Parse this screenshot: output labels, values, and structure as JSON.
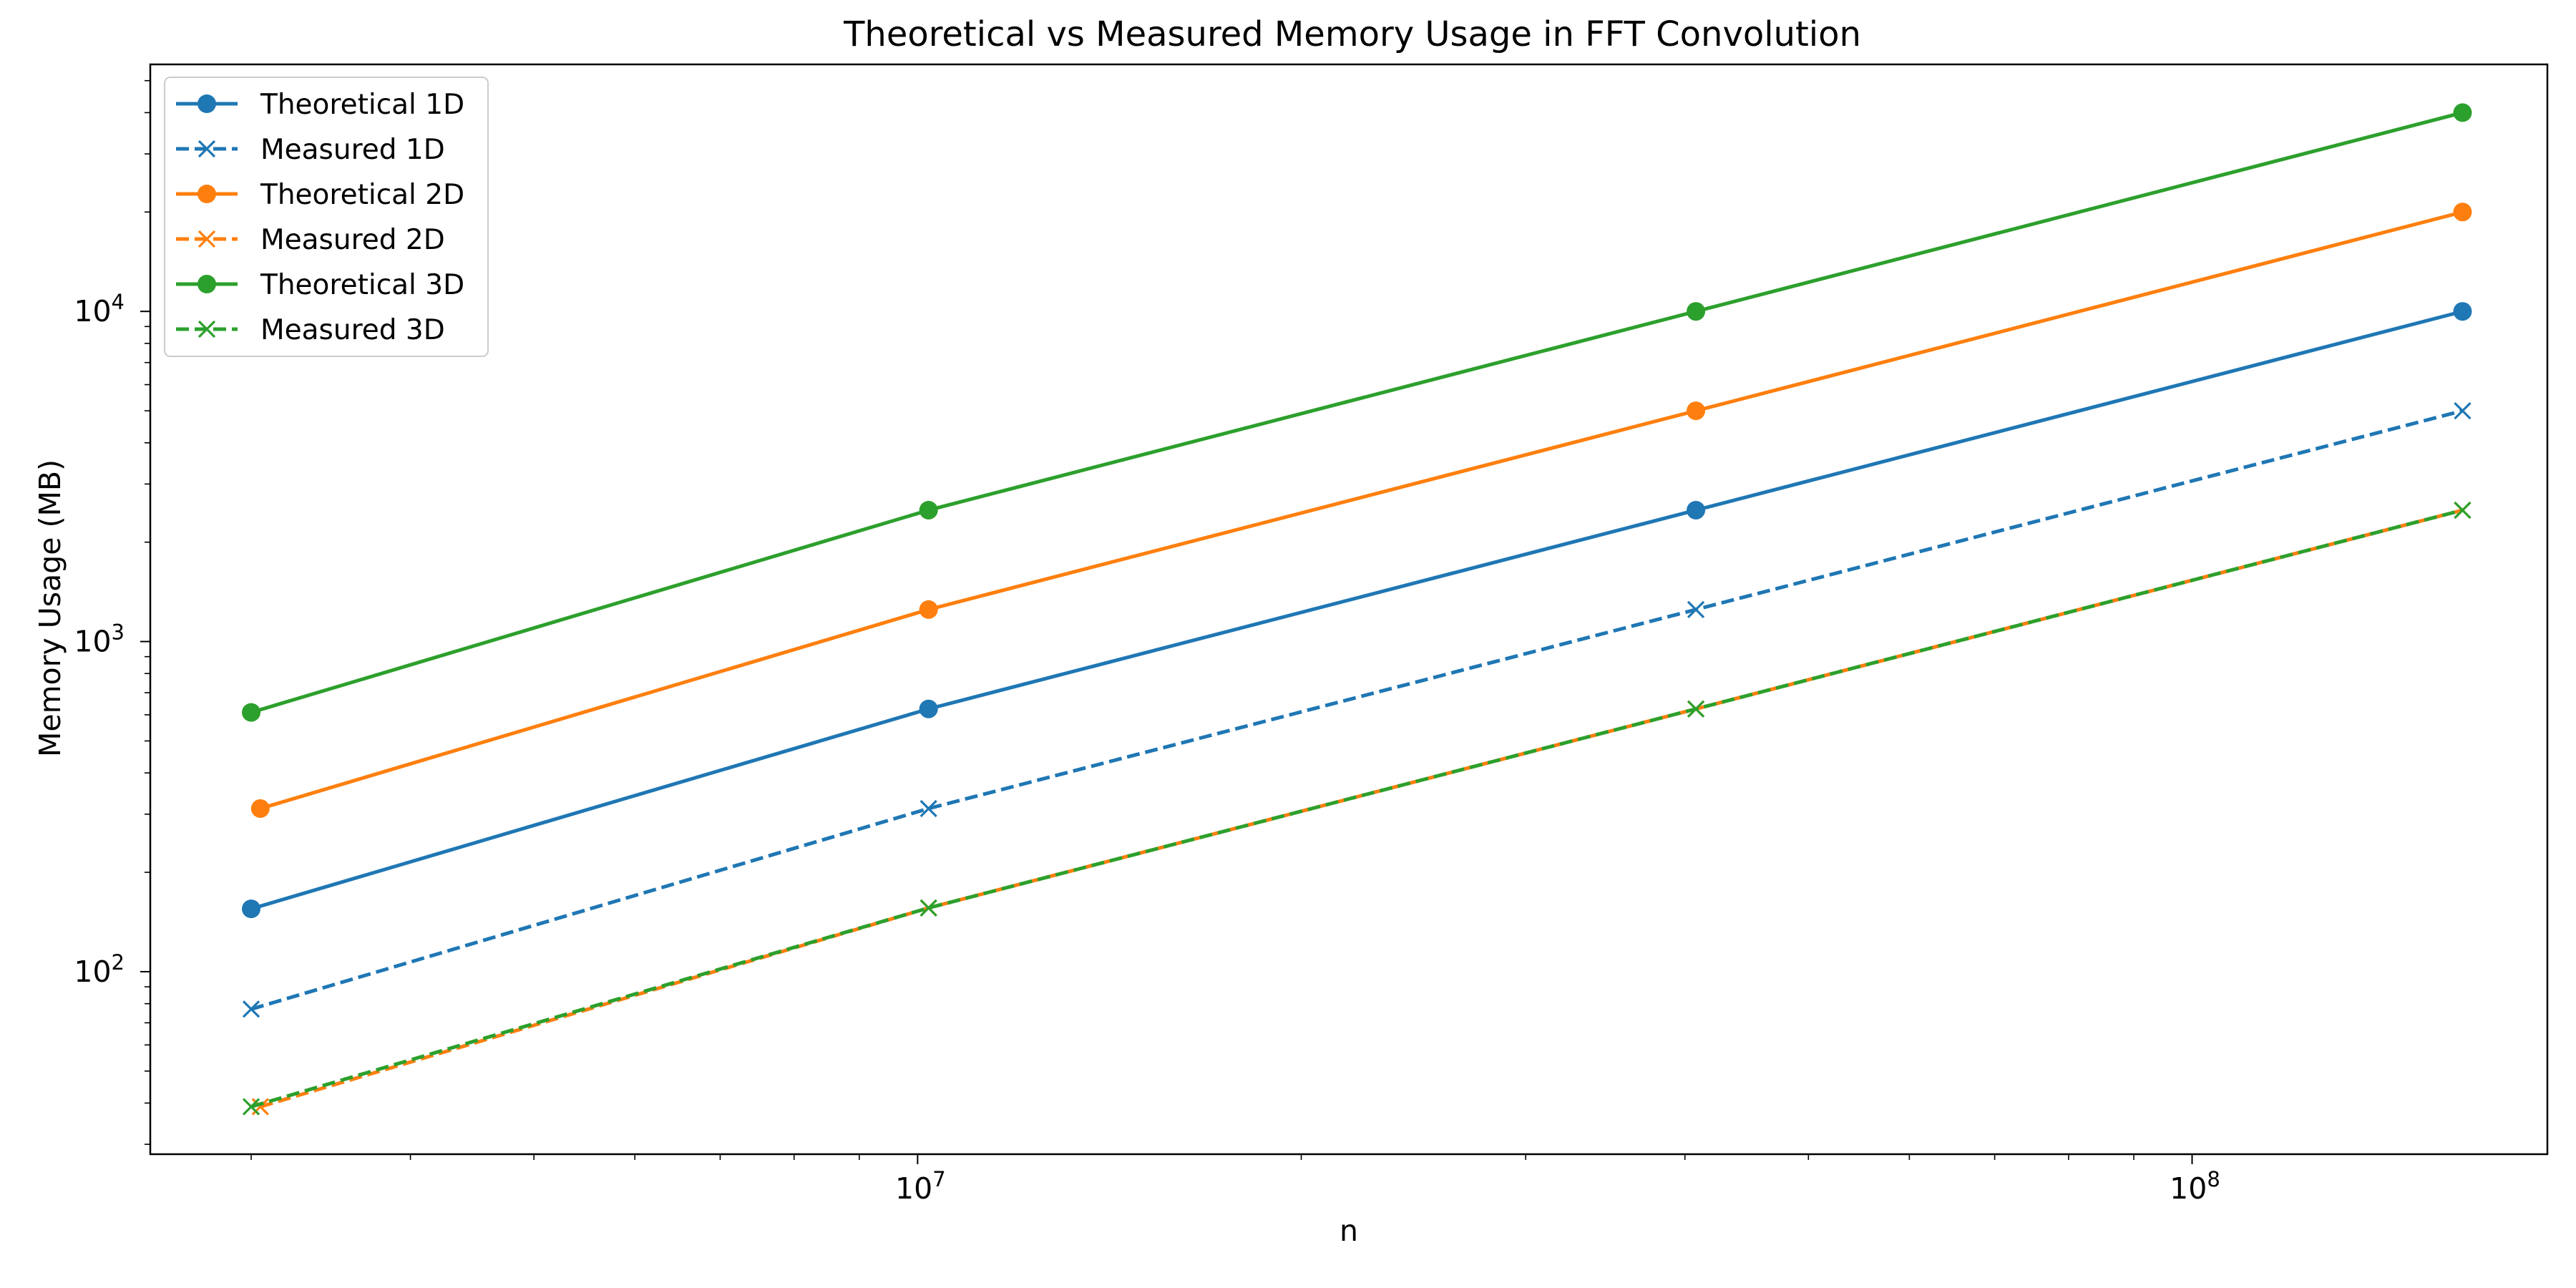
{
  "chart_data": {
    "type": "line",
    "title": "Theoretical vs Measured Memory Usage in FFT Convolution",
    "xlabel": "n",
    "ylabel": "Memory Usage (MB)",
    "xscale": "log",
    "yscale": "log",
    "xlim": [
      2500000,
      190000000
    ],
    "ylim": [
      28,
      56000
    ],
    "grid": false,
    "legend_position": "top-left",
    "x_ticks": [
      {
        "value": 10000000,
        "base": "10",
        "exp": "7"
      },
      {
        "value": 100000000,
        "base": "10",
        "exp": "8"
      }
    ],
    "y_ticks": [
      {
        "value": 100,
        "base": "10",
        "exp": "2"
      },
      {
        "value": 1000,
        "base": "10",
        "exp": "3"
      },
      {
        "value": 10000,
        "base": "10",
        "exp": "4"
      }
    ],
    "series": [
      {
        "name": "Theoretical 1D",
        "color": "#1f77b4",
        "dash": "solid",
        "marker": "circle",
        "points": [
          [
            3000000,
            155
          ],
          [
            10200000,
            625
          ],
          [
            40800000,
            2500
          ],
          [
            163000000,
            10000
          ]
        ]
      },
      {
        "name": "Measured 1D",
        "color": "#1f77b4",
        "dash": "dashed",
        "marker": "x",
        "points": [
          [
            3000000,
            77
          ],
          [
            10200000,
            312
          ],
          [
            40800000,
            1250
          ],
          [
            163000000,
            5000
          ]
        ]
      },
      {
        "name": "Theoretical 2D",
        "color": "#ff7f0e",
        "dash": "solid",
        "marker": "circle",
        "points": [
          [
            3050000,
            312
          ],
          [
            10200000,
            1250
          ],
          [
            40800000,
            5000
          ],
          [
            163000000,
            20000
          ]
        ]
      },
      {
        "name": "Measured 2D",
        "color": "#ff7f0e",
        "dash": "dashed",
        "marker": "x",
        "points": [
          [
            3050000,
            39
          ],
          [
            10200000,
            156
          ],
          [
            40800000,
            625
          ],
          [
            163000000,
            2500
          ]
        ]
      },
      {
        "name": "Theoretical 3D",
        "color": "#2ca02c",
        "dash": "solid",
        "marker": "circle",
        "points": [
          [
            3000000,
            610
          ],
          [
            10200000,
            2500
          ],
          [
            40800000,
            10000
          ],
          [
            163000000,
            40000
          ]
        ]
      },
      {
        "name": "Measured 3D",
        "color": "#2ca02c",
        "dash": "dashed",
        "marker": "x",
        "points": [
          [
            3000000,
            39
          ],
          [
            10200000,
            156
          ],
          [
            40800000,
            625
          ],
          [
            163000000,
            2500
          ]
        ]
      }
    ]
  }
}
